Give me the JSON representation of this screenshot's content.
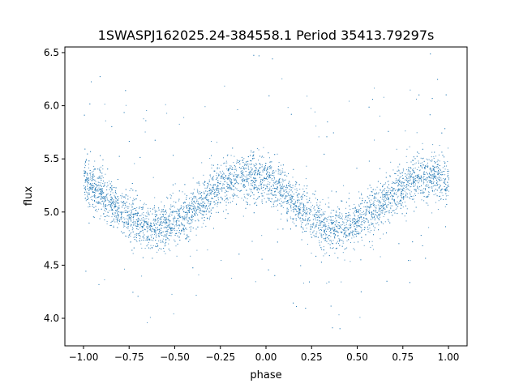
{
  "chart_data": {
    "type": "scatter",
    "title": "1SWASPJ162025.24-384558.1 Period 35413.79297s",
    "xlabel": "phase",
    "ylabel": "flux",
    "xlim": [
      -1.102,
      1.102
    ],
    "ylim": [
      3.741,
      6.553
    ],
    "xticks": [
      -1.0,
      -0.75,
      -0.5,
      -0.25,
      0.0,
      0.25,
      0.5,
      0.75,
      1.0
    ],
    "xtick_labels": [
      "−1.00",
      "−0.75",
      "−0.50",
      "−0.25",
      "0.00",
      "0.25",
      "0.50",
      "0.75",
      "1.00"
    ],
    "yticks": [
      4.0,
      4.5,
      5.0,
      5.5,
      6.0,
      6.5
    ],
    "ytick_labels": [
      "4.0",
      "4.5",
      "5.0",
      "5.5",
      "6.0",
      "6.5"
    ],
    "grid": false,
    "series": [
      {
        "name": "flux",
        "color": "#1f77b4",
        "n_points": 6000,
        "model": {
          "mean": 5.1,
          "amplitude": 0.24,
          "phase_of_max": -0.1,
          "period_in_phase": 1.0,
          "scatter_sigma": 0.11,
          "outlier_fraction": 0.04,
          "x_range": [
            -1.0,
            1.0
          ]
        }
      }
    ]
  }
}
